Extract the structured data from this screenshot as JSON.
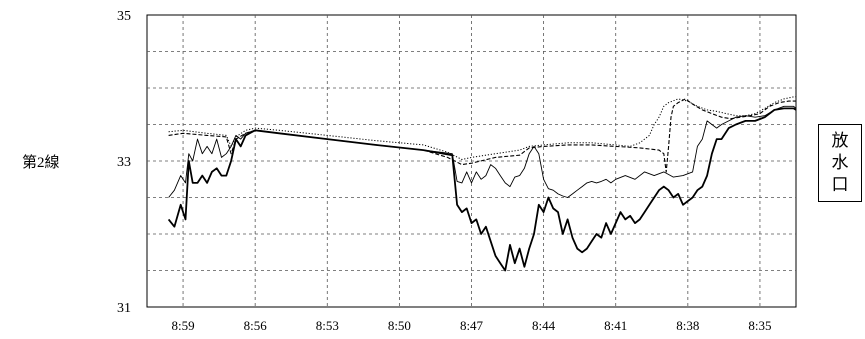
{
  "labels": {
    "line_label": "第2線",
    "outlet_chars": [
      "放",
      "水",
      "口"
    ]
  },
  "chart_data": {
    "type": "line",
    "title": "",
    "xlabel": "",
    "ylabel": "",
    "x_direction": "reversed",
    "x_ticks": [
      "8:59",
      "8:56",
      "8:53",
      "8:50",
      "8:47",
      "8:44",
      "8:41",
      "8:38",
      "8:35"
    ],
    "y_ticks": [
      31,
      33,
      35
    ],
    "ylim": [
      31,
      35
    ],
    "grid": true,
    "legend": "none",
    "series": [
      {
        "style": "solid-thick",
        "points": [
          [
            9.3,
            32.2
          ],
          [
            9.18,
            32.1
          ],
          [
            9.05,
            32.4
          ],
          [
            8.95,
            32.2
          ],
          [
            8.88,
            33.0
          ],
          [
            8.8,
            32.7
          ],
          [
            8.7,
            32.7
          ],
          [
            8.6,
            32.8
          ],
          [
            8.5,
            32.7
          ],
          [
            8.4,
            32.85
          ],
          [
            8.3,
            32.9
          ],
          [
            8.2,
            32.8
          ],
          [
            8.1,
            32.8
          ],
          [
            8.0,
            33.0
          ],
          [
            7.9,
            33.3
          ],
          [
            7.8,
            33.2
          ],
          [
            7.7,
            33.35
          ],
          [
            7.5,
            33.42
          ],
          [
            7.0,
            33.38
          ],
          [
            6.0,
            33.3
          ],
          [
            5.0,
            33.22
          ],
          [
            4.0,
            33.15
          ],
          [
            3.4,
            33.08
          ],
          [
            3.3,
            32.4
          ],
          [
            3.2,
            32.3
          ],
          [
            3.1,
            32.35
          ],
          [
            3.0,
            32.15
          ],
          [
            2.9,
            32.2
          ],
          [
            2.8,
            32.0
          ],
          [
            2.7,
            32.1
          ],
          [
            2.6,
            31.9
          ],
          [
            2.5,
            31.7
          ],
          [
            2.4,
            31.6
          ],
          [
            2.3,
            31.5
          ],
          [
            2.2,
            31.85
          ],
          [
            2.1,
            31.6
          ],
          [
            2.0,
            31.8
          ],
          [
            1.9,
            31.55
          ],
          [
            1.8,
            31.8
          ],
          [
            1.7,
            32.0
          ],
          [
            1.6,
            32.4
          ],
          [
            1.5,
            32.3
          ],
          [
            1.4,
            32.5
          ],
          [
            1.3,
            32.35
          ],
          [
            1.2,
            32.3
          ],
          [
            1.1,
            32.0
          ],
          [
            1.0,
            32.2
          ],
          [
            0.9,
            31.95
          ],
          [
            0.8,
            31.8
          ],
          [
            0.7,
            31.75
          ],
          [
            0.6,
            31.8
          ],
          [
            0.5,
            31.9
          ],
          [
            0.4,
            32.0
          ],
          [
            0.3,
            31.95
          ],
          [
            0.2,
            32.15
          ],
          [
            0.1,
            32.0
          ],
          [
            0.0,
            32.15
          ],
          [
            -0.1,
            32.3
          ],
          [
            -0.2,
            32.2
          ],
          [
            -0.3,
            32.25
          ],
          [
            -0.4,
            32.15
          ],
          [
            -0.5,
            32.2
          ],
          [
            -0.6,
            32.3
          ],
          [
            -0.7,
            32.4
          ],
          [
            -0.8,
            32.5
          ],
          [
            -0.9,
            32.6
          ],
          [
            -1.0,
            32.65
          ],
          [
            -1.1,
            32.6
          ],
          [
            -1.2,
            32.5
          ],
          [
            -1.3,
            32.55
          ],
          [
            -1.4,
            32.4
          ],
          [
            -1.5,
            32.45
          ],
          [
            -1.6,
            32.5
          ],
          [
            -1.7,
            32.6
          ],
          [
            -1.8,
            32.65
          ],
          [
            -1.9,
            32.8
          ],
          [
            -2.0,
            33.1
          ],
          [
            -2.1,
            33.3
          ],
          [
            -2.2,
            33.3
          ],
          [
            -2.35,
            33.45
          ],
          [
            -2.5,
            33.5
          ],
          [
            -2.7,
            33.55
          ],
          [
            -2.9,
            33.55
          ],
          [
            -3.1,
            33.6
          ],
          [
            -3.3,
            33.7
          ],
          [
            -3.5,
            33.72
          ],
          [
            -3.7,
            33.72
          ],
          [
            -3.85,
            33.7
          ]
        ]
      },
      {
        "style": "solid-thin",
        "points": [
          [
            9.3,
            32.5
          ],
          [
            9.18,
            32.6
          ],
          [
            9.05,
            32.8
          ],
          [
            8.95,
            32.7
          ],
          [
            8.88,
            33.1
          ],
          [
            8.8,
            33.0
          ],
          [
            8.7,
            33.3
          ],
          [
            8.6,
            33.1
          ],
          [
            8.5,
            33.2
          ],
          [
            8.4,
            33.1
          ],
          [
            8.3,
            33.3
          ],
          [
            8.2,
            33.05
          ],
          [
            8.1,
            33.1
          ],
          [
            8.0,
            33.2
          ],
          [
            7.9,
            33.35
          ],
          [
            7.8,
            33.3
          ],
          [
            7.7,
            33.38
          ],
          [
            7.5,
            33.42
          ],
          [
            7.0,
            33.38
          ],
          [
            6.0,
            33.3
          ],
          [
            5.0,
            33.22
          ],
          [
            4.0,
            33.15
          ],
          [
            3.4,
            33.1
          ],
          [
            3.3,
            32.72
          ],
          [
            3.2,
            32.7
          ],
          [
            3.1,
            32.85
          ],
          [
            3.0,
            32.7
          ],
          [
            2.9,
            32.85
          ],
          [
            2.8,
            32.75
          ],
          [
            2.7,
            32.8
          ],
          [
            2.6,
            32.95
          ],
          [
            2.5,
            32.9
          ],
          [
            2.4,
            32.8
          ],
          [
            2.3,
            32.7
          ],
          [
            2.2,
            32.65
          ],
          [
            2.1,
            32.78
          ],
          [
            2.0,
            32.8
          ],
          [
            1.9,
            32.9
          ],
          [
            1.8,
            33.1
          ],
          [
            1.7,
            33.2
          ],
          [
            1.6,
            33.1
          ],
          [
            1.5,
            32.75
          ],
          [
            1.4,
            32.62
          ],
          [
            1.3,
            32.6
          ],
          [
            1.2,
            32.55
          ],
          [
            1.1,
            32.52
          ],
          [
            1.0,
            32.5
          ],
          [
            0.9,
            32.55
          ],
          [
            0.8,
            32.6
          ],
          [
            0.7,
            32.65
          ],
          [
            0.6,
            32.7
          ],
          [
            0.5,
            32.72
          ],
          [
            0.4,
            32.7
          ],
          [
            0.3,
            32.72
          ],
          [
            0.2,
            32.75
          ],
          [
            0.1,
            32.7
          ],
          [
            0.0,
            32.75
          ],
          [
            -0.2,
            32.8
          ],
          [
            -0.4,
            32.75
          ],
          [
            -0.6,
            32.85
          ],
          [
            -0.8,
            32.8
          ],
          [
            -1.0,
            32.85
          ],
          [
            -1.2,
            32.78
          ],
          [
            -1.4,
            32.8
          ],
          [
            -1.6,
            32.85
          ],
          [
            -1.7,
            33.2
          ],
          [
            -1.8,
            33.3
          ],
          [
            -1.9,
            33.55
          ],
          [
            -2.0,
            33.5
          ],
          [
            -2.1,
            33.45
          ],
          [
            -2.2,
            33.5
          ],
          [
            -2.35,
            33.55
          ],
          [
            -2.5,
            33.6
          ],
          [
            -2.7,
            33.62
          ],
          [
            -2.9,
            33.6
          ],
          [
            -3.1,
            33.62
          ],
          [
            -3.3,
            33.7
          ],
          [
            -3.5,
            33.75
          ],
          [
            -3.7,
            33.75
          ],
          [
            -3.85,
            33.72
          ]
        ]
      },
      {
        "style": "dashed",
        "points": [
          [
            9.3,
            33.35
          ],
          [
            9.0,
            33.38
          ],
          [
            8.5,
            33.35
          ],
          [
            8.1,
            33.33
          ],
          [
            8.0,
            33.1
          ],
          [
            7.9,
            33.3
          ],
          [
            7.7,
            33.38
          ],
          [
            7.5,
            33.42
          ],
          [
            7.0,
            33.38
          ],
          [
            6.0,
            33.3
          ],
          [
            5.0,
            33.22
          ],
          [
            4.0,
            33.15
          ],
          [
            3.5,
            33.05
          ],
          [
            3.2,
            32.95
          ],
          [
            3.0,
            32.97
          ],
          [
            2.5,
            33.05
          ],
          [
            2.0,
            33.08
          ],
          [
            1.8,
            33.18
          ],
          [
            1.5,
            33.2
          ],
          [
            1.0,
            33.22
          ],
          [
            0.5,
            33.22
          ],
          [
            0.0,
            33.2
          ],
          [
            -0.5,
            33.18
          ],
          [
            -0.9,
            33.15
          ],
          [
            -1.0,
            33.1
          ],
          [
            -1.05,
            32.85
          ],
          [
            -1.1,
            33.2
          ],
          [
            -1.15,
            33.6
          ],
          [
            -1.2,
            33.75
          ],
          [
            -1.3,
            33.8
          ],
          [
            -1.45,
            33.85
          ],
          [
            -1.6,
            33.78
          ],
          [
            -1.8,
            33.7
          ],
          [
            -2.0,
            33.65
          ],
          [
            -2.2,
            33.6
          ],
          [
            -2.4,
            33.58
          ],
          [
            -2.6,
            33.6
          ],
          [
            -2.8,
            33.62
          ],
          [
            -3.0,
            33.65
          ],
          [
            -3.2,
            33.75
          ],
          [
            -3.4,
            33.8
          ],
          [
            -3.6,
            33.82
          ],
          [
            -3.85,
            33.82
          ]
        ]
      },
      {
        "style": "dotted",
        "points": [
          [
            9.3,
            33.4
          ],
          [
            9.0,
            33.42
          ],
          [
            8.5,
            33.38
          ],
          [
            8.1,
            33.35
          ],
          [
            8.0,
            33.2
          ],
          [
            7.9,
            33.33
          ],
          [
            7.7,
            33.42
          ],
          [
            7.5,
            33.45
          ],
          [
            7.0,
            33.42
          ],
          [
            6.0,
            33.35
          ],
          [
            5.0,
            33.28
          ],
          [
            4.0,
            33.22
          ],
          [
            3.5,
            33.12
          ],
          [
            3.2,
            33.02
          ],
          [
            3.0,
            33.05
          ],
          [
            2.5,
            33.1
          ],
          [
            2.0,
            33.15
          ],
          [
            1.8,
            33.2
          ],
          [
            1.5,
            33.22
          ],
          [
            1.0,
            33.25
          ],
          [
            0.5,
            33.25
          ],
          [
            0.0,
            33.22
          ],
          [
            -0.3,
            33.2
          ],
          [
            -0.5,
            33.25
          ],
          [
            -0.7,
            33.35
          ],
          [
            -0.8,
            33.5
          ],
          [
            -0.9,
            33.6
          ],
          [
            -1.0,
            33.75
          ],
          [
            -1.1,
            33.8
          ],
          [
            -1.3,
            33.85
          ],
          [
            -1.5,
            33.82
          ],
          [
            -1.7,
            33.75
          ],
          [
            -1.9,
            33.7
          ],
          [
            -2.1,
            33.68
          ],
          [
            -2.3,
            33.65
          ],
          [
            -2.5,
            33.62
          ],
          [
            -2.7,
            33.62
          ],
          [
            -2.9,
            33.65
          ],
          [
            -3.1,
            33.72
          ],
          [
            -3.3,
            33.8
          ],
          [
            -3.5,
            33.85
          ],
          [
            -3.7,
            33.88
          ],
          [
            -3.85,
            33.88
          ]
        ]
      }
    ]
  }
}
